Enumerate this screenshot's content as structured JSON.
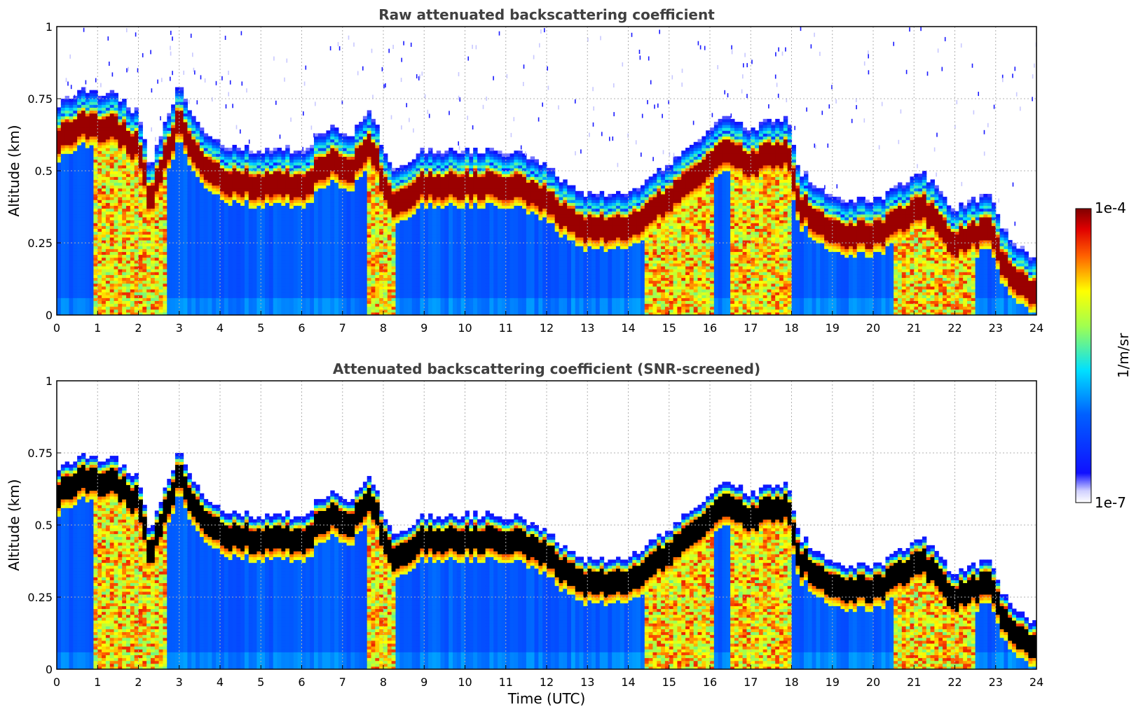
{
  "chart_data": [
    {
      "type": "heatmap",
      "title": "Raw attenuated backscattering coefficient",
      "xlabel": "",
      "ylabel": "Altitude (km)",
      "xlim": [
        0,
        24
      ],
      "ylim": [
        0,
        1
      ],
      "x_ticks": [
        "0",
        "1",
        "2",
        "3",
        "4",
        "5",
        "6",
        "7",
        "8",
        "9",
        "10",
        "11",
        "12",
        "13",
        "14",
        "15",
        "16",
        "17",
        "18",
        "19",
        "20",
        "21",
        "22",
        "23",
        "24"
      ],
      "y_ticks": [
        "0",
        "0.25",
        "0.5",
        "0.75",
        "1"
      ],
      "grid": true,
      "layer_top_km": {
        "x": [
          0,
          0.5,
          0.9,
          1.0,
          1.3,
          2.0,
          2.3,
          2.6,
          3.0,
          3.5,
          4.0,
          5.0,
          6.0,
          6.7,
          7.2,
          7.7,
          8.2,
          9.0,
          10.0,
          11.0,
          12.0,
          12.5,
          13.0,
          14.0,
          14.5,
          15.2,
          16.0,
          16.3,
          17.0,
          17.9,
          18.2,
          19.0,
          20.0,
          20.5,
          21.2,
          22.0,
          22.8,
          23.2,
          23.6,
          24.0
        ],
        "y": [
          0.68,
          0.71,
          0.75,
          0.72,
          0.73,
          0.65,
          0.45,
          0.6,
          0.75,
          0.6,
          0.54,
          0.52,
          0.52,
          0.6,
          0.58,
          0.66,
          0.45,
          0.52,
          0.52,
          0.52,
          0.48,
          0.4,
          0.37,
          0.37,
          0.42,
          0.5,
          0.6,
          0.63,
          0.6,
          0.64,
          0.45,
          0.35,
          0.35,
          0.38,
          0.45,
          0.32,
          0.37,
          0.25,
          0.18,
          0.15
        ]
      }
    },
    {
      "type": "heatmap",
      "title": "Attenuated backscattering coefficient (SNR-screened)",
      "xlabel": "Time (UTC)",
      "ylabel": "Altitude (km)",
      "xlim": [
        0,
        24
      ],
      "ylim": [
        0,
        1
      ],
      "x_ticks": [
        "0",
        "1",
        "2",
        "3",
        "4",
        "5",
        "6",
        "7",
        "8",
        "9",
        "10",
        "11",
        "12",
        "13",
        "14",
        "15",
        "16",
        "17",
        "18",
        "19",
        "20",
        "21",
        "22",
        "23",
        "24"
      ],
      "y_ticks": [
        "0",
        "0.25",
        "0.5",
        "0.75",
        "1"
      ],
      "grid": true,
      "saturated_color": "#000000"
    }
  ],
  "colorbar": {
    "label": "1/m/sr",
    "max_label": "1e-4",
    "min_label": "1e-7",
    "scale": "log",
    "colormap": [
      "#e8e8ff",
      "#0000ff",
      "#0080ff",
      "#00ffff",
      "#80ff80",
      "#ffff00",
      "#ff8000",
      "#ff0000",
      "#800000"
    ]
  }
}
